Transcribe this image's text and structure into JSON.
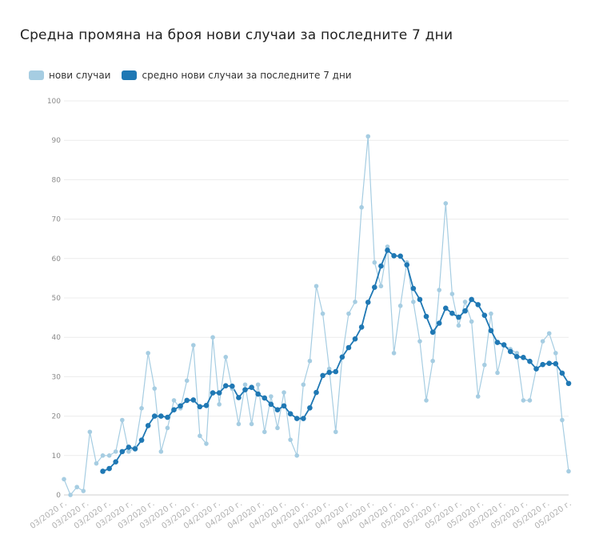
{
  "chart_data": {
    "type": "line",
    "title": "Средна промяна на броя нови случаи за последните 7 дни",
    "colors": {
      "new_cases": "#a6cde2",
      "avg": "#1f78b4"
    },
    "series": [
      {
        "name": "нови случаи",
        "values": [
          4,
          0,
          2,
          1,
          16,
          8,
          10,
          10,
          11,
          19,
          11,
          12,
          22,
          36,
          27,
          11,
          17,
          24,
          22,
          29,
          38,
          15,
          13,
          40,
          23,
          35,
          27,
          18,
          28,
          18,
          28,
          16,
          25,
          17,
          26,
          14,
          10,
          28,
          34,
          53,
          46,
          32,
          16,
          35,
          46,
          49,
          73,
          91,
          59,
          53,
          63,
          36,
          48,
          59,
          49,
          39,
          24,
          34,
          52,
          74,
          51,
          43,
          49,
          44,
          25,
          33,
          46,
          31,
          38,
          37,
          36,
          24,
          24,
          32,
          39,
          41,
          36,
          19,
          6
        ]
      },
      {
        "name": "средно нови случаи за последните 7 дни",
        "values": [
          null,
          null,
          null,
          null,
          null,
          null,
          6,
          6.7,
          8.4,
          11,
          12.1,
          11.7,
          13.9,
          17.6,
          20,
          20,
          19.7,
          21.6,
          22.6,
          24,
          24.1,
          22.4,
          22.7,
          25.9,
          25.9,
          27.7,
          27.6,
          24.7,
          26.7,
          27.3,
          25.6,
          24.6,
          23,
          21.6,
          22.6,
          20.6,
          19.4,
          19.4,
          22.1,
          26,
          30.3,
          31.1,
          31.3,
          35,
          37.4,
          39.6,
          42.6,
          48.9,
          52.7,
          58.1,
          62.1,
          60.7,
          60.6,
          58.4,
          52.4,
          49.6,
          45.3,
          41.3,
          43.6,
          47.4,
          46.1,
          45.1,
          46.7,
          49.6,
          48.3,
          45.6,
          41.7,
          38.7,
          38.1,
          36.4,
          35.1,
          34.9,
          33.9,
          32,
          33.1,
          33.4,
          33.3,
          30.9,
          28.3
        ]
      }
    ],
    "x_labels": [
      "03/2020 г.",
      "03/2020 г.",
      "03/2020 г.",
      "03/2020 г.",
      "03/2020 г.",
      "03/2020 г.",
      "03/2020 г.",
      "04/2020 г.",
      "04/2020 г.",
      "04/2020 г.",
      "04/2020 г.",
      "04/2020 г.",
      "04/2020 г.",
      "04/2020 г.",
      "04/2020 г.",
      "04/2020 г.",
      "05/2020 г.",
      "05/2020 г.",
      "05/2020 г.",
      "05/2020 г.",
      "05/2020 г.",
      "05/2020 г.",
      "05/2020 г.",
      "05/2020 г."
    ],
    "y_ticks": [
      0,
      10,
      20,
      30,
      40,
      50,
      60,
      70,
      80,
      90,
      100
    ],
    "ylim": [
      0,
      100
    ],
    "grid": true,
    "legend_position": "top-left"
  }
}
